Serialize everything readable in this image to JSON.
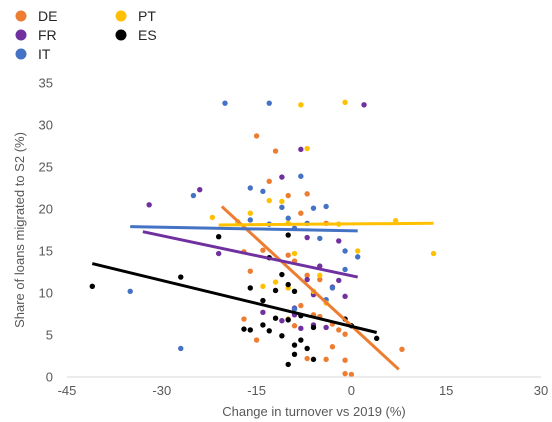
{
  "chart_data": {
    "type": "scatter",
    "xlabel": "Change in turnover vs 2019 (%)",
    "ylabel": "Share of loans migrated to S2 (%)",
    "xlim": [
      -45,
      30
    ],
    "ylim": [
      0,
      35
    ],
    "xticks": [
      -45,
      -30,
      -15,
      0,
      15,
      30
    ],
    "yticks": [
      0,
      5,
      10,
      15,
      20,
      25,
      30,
      35
    ],
    "grid": false,
    "legend_position": "top-left",
    "series": [
      {
        "name": "DE",
        "color": "#ED7D31",
        "points": [
          [
            -15,
            28.7
          ],
          [
            -12,
            26.9
          ],
          [
            -10,
            21.6
          ],
          [
            -13,
            23.3
          ],
          [
            -7,
            21.8
          ],
          [
            -8,
            19.5
          ],
          [
            -4,
            18.3
          ],
          [
            -17,
            14.9
          ],
          [
            -16,
            12.6
          ],
          [
            -14,
            15.1
          ],
          [
            -10,
            14.5
          ],
          [
            -9,
            13.8
          ],
          [
            -7,
            12.1
          ],
          [
            -5,
            11.6
          ],
          [
            -6,
            10
          ],
          [
            -8,
            8.5
          ],
          [
            -6,
            7.4
          ],
          [
            -5,
            7.2
          ],
          [
            -9,
            6.1
          ],
          [
            -10,
            6.9
          ],
          [
            -3,
            6.3
          ],
          [
            -2,
            5.6
          ],
          [
            -1,
            5.1
          ],
          [
            -17,
            6.9
          ],
          [
            -15,
            4.4
          ],
          [
            -3,
            3.6
          ],
          [
            -4,
            2.1
          ],
          [
            -1,
            2
          ],
          [
            8,
            3.3
          ],
          [
            -1,
            0.4
          ],
          [
            0,
            0.3
          ],
          [
            -7,
            2.2
          ]
        ],
        "trend": [
          [
            -20.5,
            20.3
          ],
          [
            7.5,
            0.9
          ]
        ]
      },
      {
        "name": "FR",
        "color": "#7030A0",
        "points": [
          [
            2,
            32.4
          ],
          [
            -8,
            27.1
          ],
          [
            -24,
            22.3
          ],
          [
            -11,
            23.8
          ],
          [
            -32,
            20.5
          ],
          [
            -7,
            16.6
          ],
          [
            -2,
            16.2
          ],
          [
            -21,
            14.7
          ],
          [
            -5,
            13.2
          ],
          [
            -7,
            11.6
          ],
          [
            -2,
            11.5
          ],
          [
            -3,
            10.7
          ],
          [
            -6,
            9.8
          ],
          [
            -1,
            9.6
          ],
          [
            -9,
            8.2
          ],
          [
            -6,
            6.2
          ],
          [
            -4,
            5.9
          ],
          [
            -11,
            6.7
          ],
          [
            -14,
            7.7
          ],
          [
            -9,
            7.4
          ],
          [
            -8,
            5.8
          ]
        ],
        "trend": [
          [
            -33,
            17.3
          ],
          [
            1,
            11.9
          ]
        ]
      },
      {
        "name": "IT",
        "color": "#4472C4",
        "points": [
          [
            -20,
            32.6
          ],
          [
            -13,
            32.6
          ],
          [
            -8,
            23.9
          ],
          [
            -25,
            21.6
          ],
          [
            -16,
            22.5
          ],
          [
            -14,
            22.1
          ],
          [
            -11,
            20.2
          ],
          [
            -6,
            20.1
          ],
          [
            -4,
            20.3
          ],
          [
            -16,
            18.7
          ],
          [
            -13,
            18.2
          ],
          [
            -10,
            18.9
          ],
          [
            -7,
            18.3
          ],
          [
            -9,
            17.7
          ],
          [
            -5,
            16.5
          ],
          [
            -1,
            12.8
          ],
          [
            -3,
            10.6
          ],
          [
            -4,
            9.2
          ],
          [
            -35,
            10.2
          ],
          [
            -9,
            8.1
          ],
          [
            1,
            14.3
          ],
          [
            -27,
            3.4
          ],
          [
            -1,
            15
          ]
        ],
        "trend": [
          [
            -35,
            17.9
          ],
          [
            1,
            17.4
          ]
        ]
      },
      {
        "name": "PT",
        "color": "#FFC000",
        "points": [
          [
            -8,
            32.4
          ],
          [
            -1,
            32.7
          ],
          [
            -7,
            27.2
          ],
          [
            -11,
            20.9
          ],
          [
            -13,
            21
          ],
          [
            -22,
            19
          ],
          [
            -16,
            19.5
          ],
          [
            -18,
            18.5
          ],
          [
            -10,
            18.3
          ],
          [
            -2,
            18.2
          ],
          [
            7,
            18.6
          ],
          [
            13,
            14.7
          ],
          [
            -9,
            14.7
          ],
          [
            -5,
            12.1
          ],
          [
            -12,
            11.3
          ],
          [
            -10,
            10.6
          ],
          [
            -6,
            10.2
          ],
          [
            -4,
            8.8
          ],
          [
            -14,
            10.8
          ],
          [
            1,
            15
          ]
        ],
        "trend": [
          [
            -21,
            18.1
          ],
          [
            13,
            18.3
          ]
        ]
      },
      {
        "name": "ES",
        "color": "#000000",
        "points": [
          [
            -41,
            10.8
          ],
          [
            -27,
            11.9
          ],
          [
            -21,
            16.7
          ],
          [
            -10,
            16.9
          ],
          [
            -13,
            14.2
          ],
          [
            -11,
            12.2
          ],
          [
            -16,
            10.6
          ],
          [
            -12,
            10.3
          ],
          [
            -9,
            10.2
          ],
          [
            -10,
            11
          ],
          [
            -14,
            9.1
          ],
          [
            -8,
            7.3
          ],
          [
            -12,
            7
          ],
          [
            -10,
            6.8
          ],
          [
            -17,
            5.7
          ],
          [
            -16,
            5.6
          ],
          [
            -13,
            5.5
          ],
          [
            -11,
            4.9
          ],
          [
            -8,
            4.4
          ],
          [
            -6,
            5.9
          ],
          [
            -1,
            6.9
          ],
          [
            0,
            6.1
          ],
          [
            4,
            4.6
          ],
          [
            -9,
            3.8
          ],
          [
            -7,
            3.4
          ],
          [
            -9,
            2.7
          ],
          [
            -6,
            2.1
          ],
          [
            -10,
            1.5
          ],
          [
            -14,
            6.2
          ]
        ],
        "trend": [
          [
            -41,
            13.5
          ],
          [
            4,
            5.3
          ]
        ]
      }
    ]
  }
}
